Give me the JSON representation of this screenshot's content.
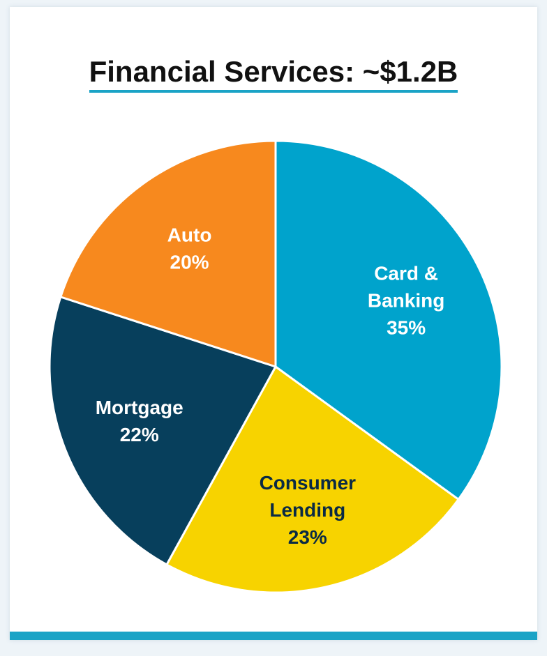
{
  "chart_data": {
    "type": "pie",
    "title": "Financial Services: ~$1.2B",
    "slices": [
      {
        "label_lines": [
          "Card &",
          "Banking"
        ],
        "value": 35,
        "value_label": "35%",
        "color": "#00a3cc",
        "text_color": "#ffffff"
      },
      {
        "label_lines": [
          "Consumer",
          "Lending"
        ],
        "value": 23,
        "value_label": "23%",
        "color": "#f7d300",
        "text_color": "#0a2a44"
      },
      {
        "label_lines": [
          "Mortgage"
        ],
        "value": 22,
        "value_label": "22%",
        "color": "#073f5c",
        "text_color": "#ffffff"
      },
      {
        "label_lines": [
          "Auto"
        ],
        "value": 20,
        "value_label": "20%",
        "color": "#f7891e",
        "text_color": "#ffffff"
      }
    ]
  },
  "colors": {
    "accent": "#1aa3c6"
  }
}
